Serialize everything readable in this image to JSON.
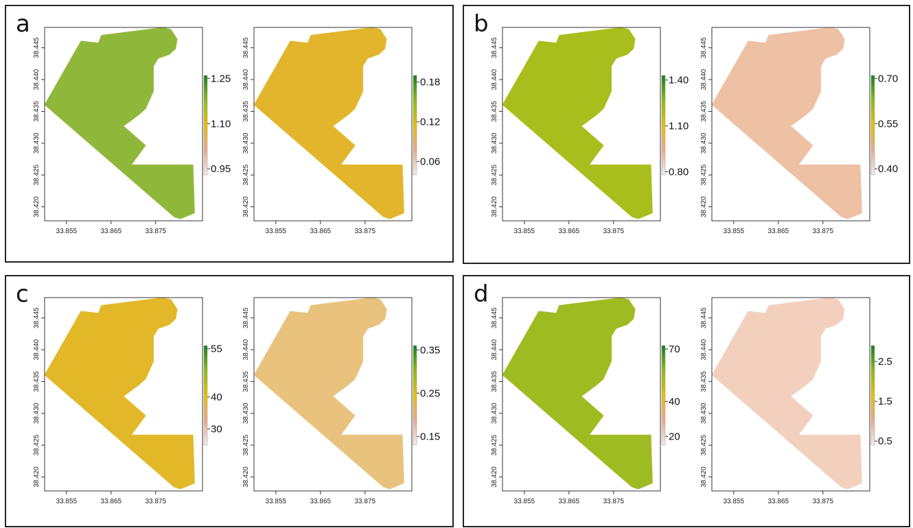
{
  "x_axis": {
    "ticks": [
      33.855,
      33.865,
      33.875
    ],
    "lim": [
      33.8501,
      33.8855
    ]
  },
  "y_axis": {
    "ticks": [
      {
        "value": 38.42,
        "label": "38.420"
      },
      38.425,
      {
        "value": 38.43,
        "label": "38.430"
      },
      38.435,
      {
        "value": 38.44,
        "label": "38.440"
      },
      38.445
    ],
    "lim": [
      38.4178,
      38.4482
    ]
  },
  "panels": [
    {
      "label": "a",
      "maps": [
        {
          "color": "#8fb83a",
          "colorbar": {
            "lim": [
              0.93,
              1.26
            ],
            "ticks": [
              0.95,
              {
                "value": 1.1,
                "label": "1.10"
              },
              1.25
            ]
          }
        },
        {
          "color": "#e2b52c",
          "colorbar": {
            "lim": [
              0.04,
              0.19
            ],
            "ticks": [
              0.06,
              0.12,
              0.18
            ]
          }
        }
      ]
    },
    {
      "label": "b",
      "maps": [
        {
          "color": "#a8be1c",
          "colorbar": {
            "lim": [
              0.78,
              1.43
            ],
            "ticks": [
              {
                "value": 0.8,
                "label": "0.80"
              },
              {
                "value": 1.1,
                "label": "1.10"
              },
              {
                "value": 1.4,
                "label": "1.40"
              }
            ]
          }
        },
        {
          "color": "#eec0a4",
          "colorbar": {
            "lim": [
              0.38,
              0.71
            ],
            "ticks": [
              {
                "value": 0.4,
                "label": "0.40"
              },
              0.55,
              {
                "value": 0.7,
                "label": "0.70"
              }
            ]
          }
        }
      ]
    },
    {
      "label": "c",
      "maps": [
        {
          "color": "#e2b828",
          "colorbar": {
            "lim": [
              25,
              56
            ],
            "ticks": [
              30,
              40,
              55
            ]
          }
        },
        {
          "color": "#e9c27e",
          "colorbar": {
            "lim": [
              0.13,
              0.36
            ],
            "ticks": [
              0.15,
              0.25,
              0.35
            ]
          }
        }
      ]
    },
    {
      "label": "d",
      "maps": [
        {
          "color": "#9fbb22",
          "colorbar": {
            "lim": [
              15,
              72
            ],
            "ticks": [
              20,
              40,
              70
            ]
          }
        },
        {
          "color": "#f3d0be",
          "colorbar": {
            "lim": [
              0.4,
              2.9
            ],
            "ticks": [
              0.5,
              1.5,
              2.5
            ]
          }
        }
      ]
    }
  ]
}
